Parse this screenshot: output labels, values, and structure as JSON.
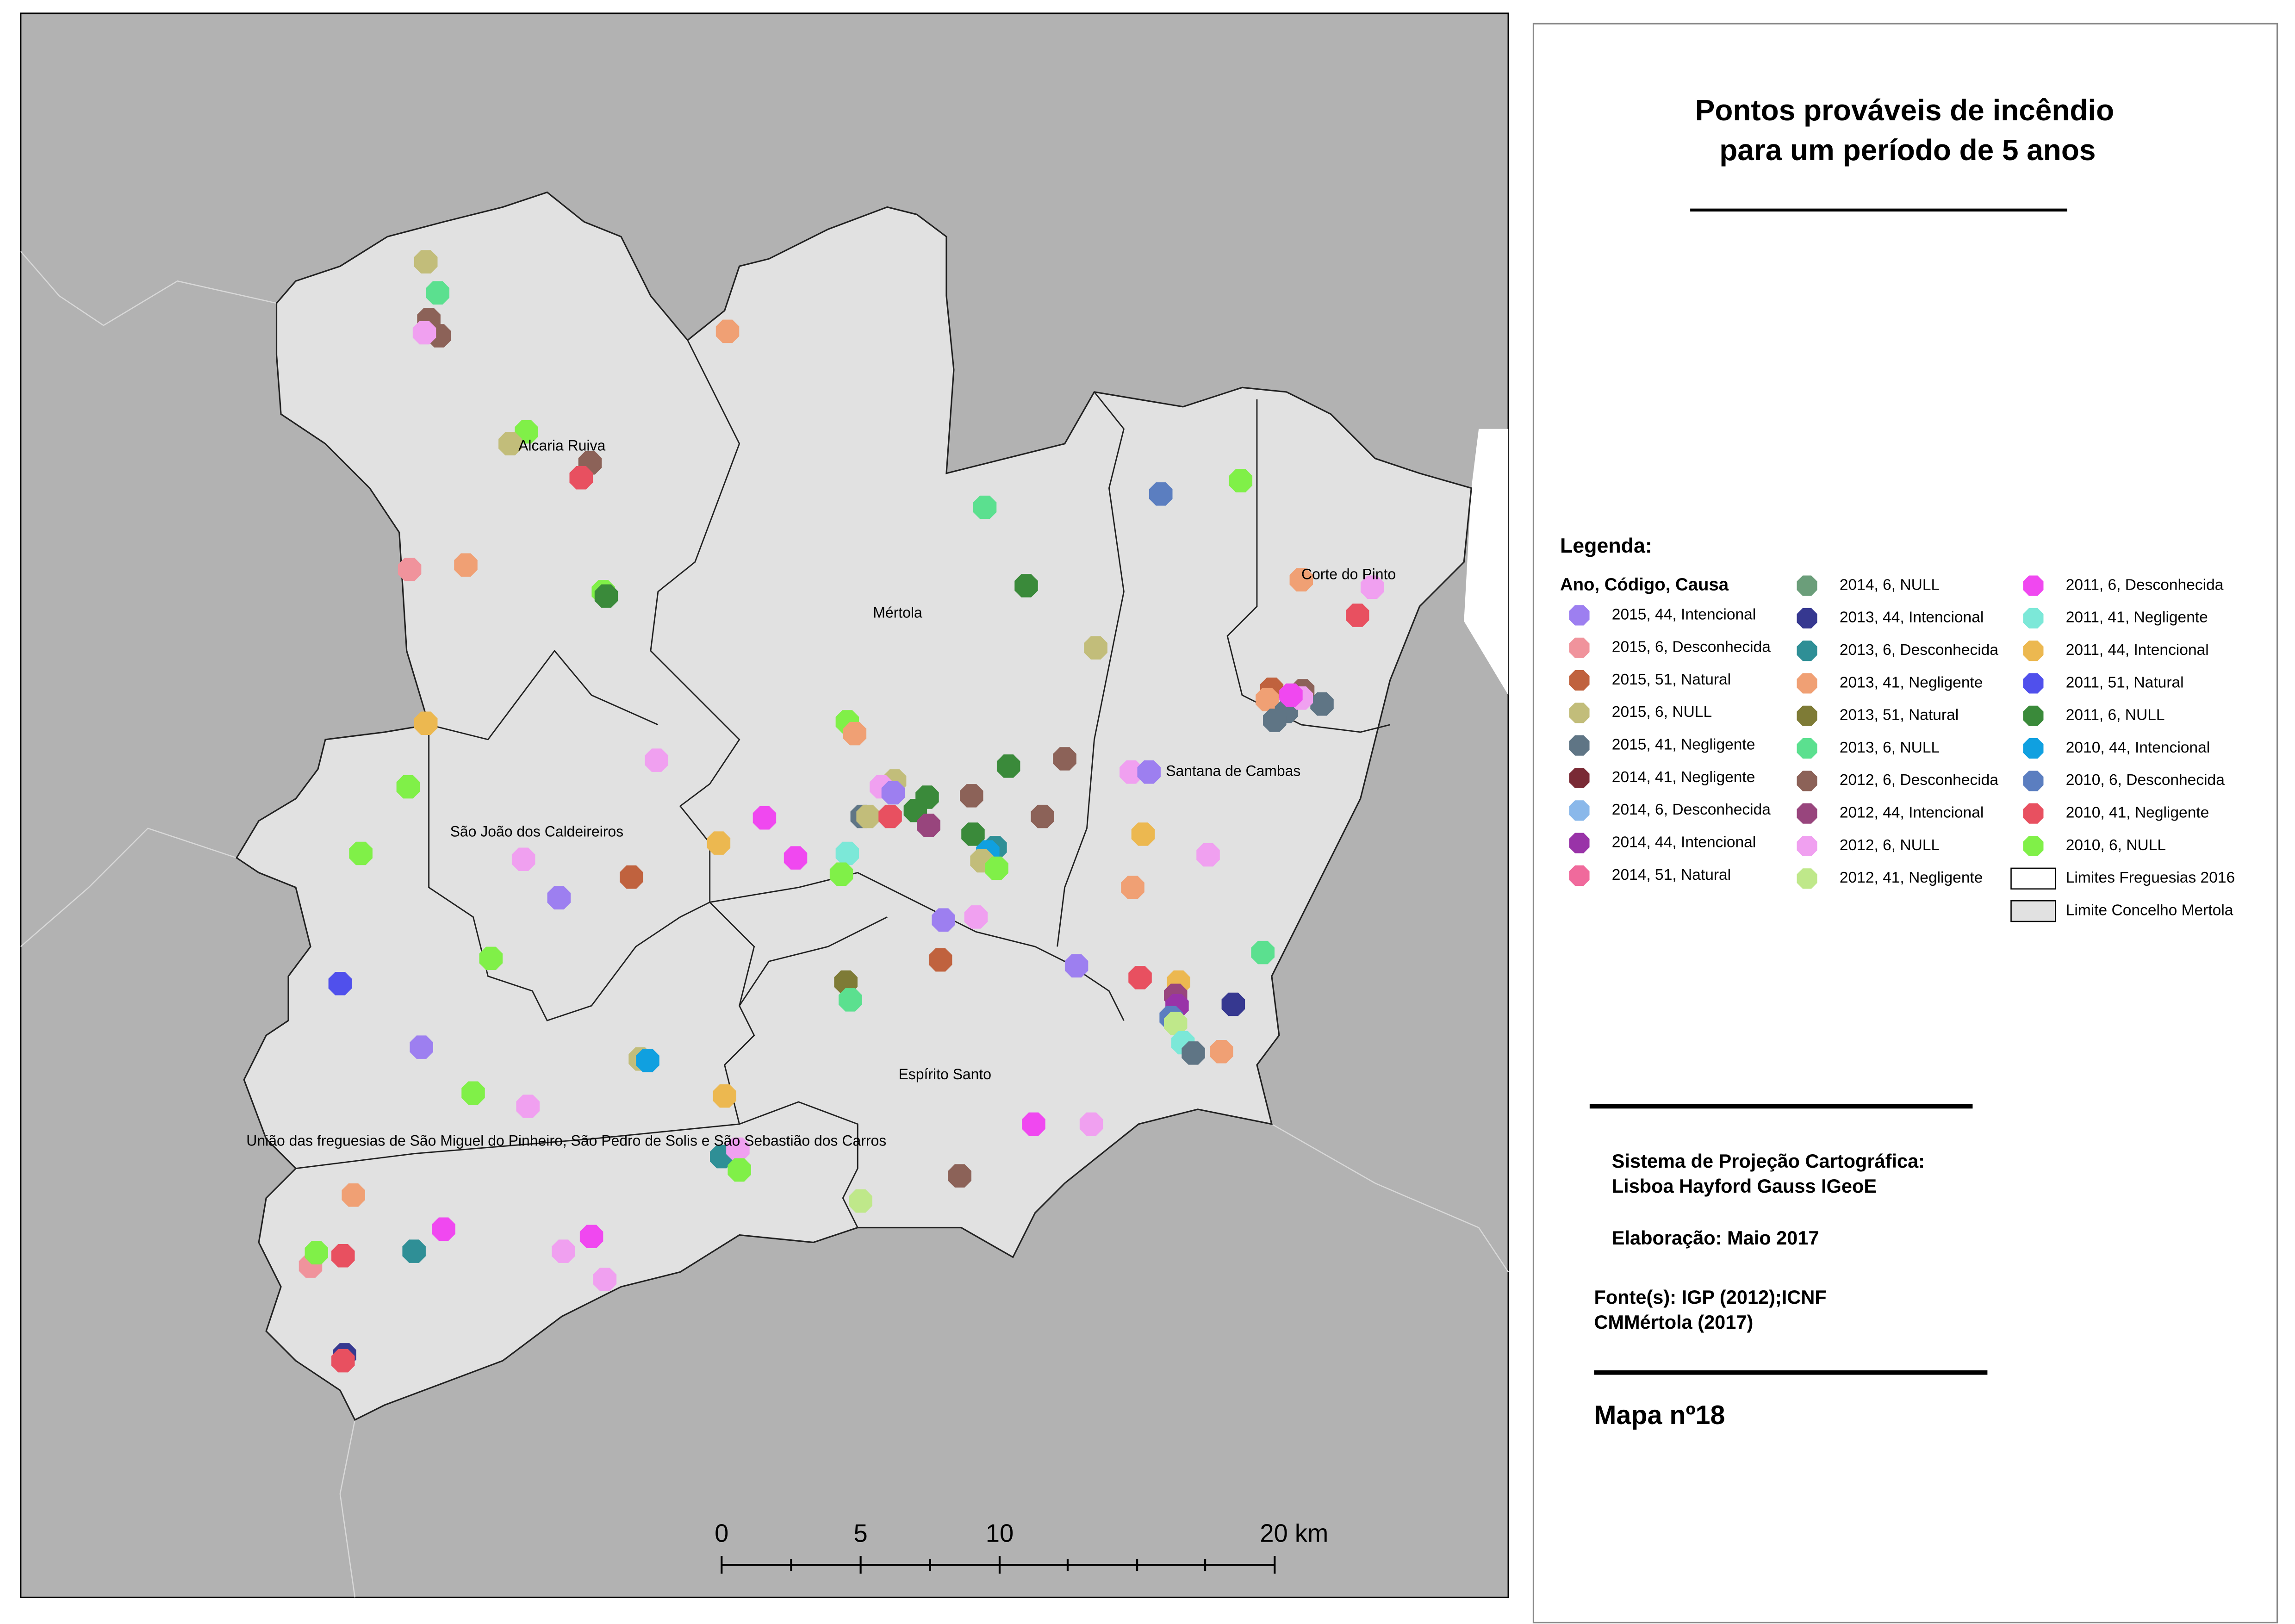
{
  "header": {
    "title_lines": [
      "Pontos prováveis de incêndio",
      "para um período de 5 anos"
    ]
  },
  "legend": {
    "title": "Legenda:",
    "subtitle": "Ano, Código, Causa",
    "entries": [
      {
        "label": "2015, 44, Intencional",
        "color": "#9d7ff0"
      },
      {
        "label": "2015, 6, Desconhecida",
        "color": "#f0939c"
      },
      {
        "label": "2015, 51, Natural",
        "color": "#c0623e"
      },
      {
        "label": "2015, 6, NULL",
        "color": "#c2bd7a"
      },
      {
        "label": "2015, 41, Negligente",
        "color": "#5f7585"
      },
      {
        "label": "2014, 41, Negligente",
        "color": "#7a2a35"
      },
      {
        "label": "2014, 6, Desconhecida",
        "color": "#8ab8ea"
      },
      {
        "label": "2014, 44, Intencional",
        "color": "#9933a8"
      },
      {
        "label": "2014, 51, Natural",
        "color": "#f06a9c"
      },
      {
        "label": "2014, 6, NULL",
        "color": "#6b9e7a"
      },
      {
        "label": "2013, 44, Intencional",
        "color": "#363890"
      },
      {
        "label": "2013, 6, Desconhecida",
        "color": "#2f8f96"
      },
      {
        "label": "2013, 41, Negligente",
        "color": "#f0a074"
      },
      {
        "label": "2013, 51, Natural",
        "color": "#7e7b36"
      },
      {
        "label": "2013, 6, NULL",
        "color": "#5be08f"
      },
      {
        "label": "2012, 6, Desconhecida",
        "color": "#8c6258"
      },
      {
        "label": "2012, 44, Intencional",
        "color": "#98457d"
      },
      {
        "label": "2012, 6, NULL",
        "color": "#f0a0f0"
      },
      {
        "label": "2012, 41, Negligente",
        "color": "#bfe88a"
      },
      {
        "label": "2011, 6, Desconhecida",
        "color": "#f048f0"
      },
      {
        "label": "2011, 41, Negligente",
        "color": "#7ce8d8"
      },
      {
        "label": "2011, 44, Intencional",
        "color": "#ecb850"
      },
      {
        "label": "2011, 51, Natural",
        "color": "#5050ec"
      },
      {
        "label": "2011, 6, NULL",
        "color": "#3a8a3a"
      },
      {
        "label": "2010, 44, Intencional",
        "color": "#10a0e0"
      },
      {
        "label": "2010, 6, Desconhecida",
        "color": "#5b7ec0"
      },
      {
        "label": "2010, 41, Negligente",
        "color": "#e85060"
      },
      {
        "label": "2010, 6, NULL",
        "color": "#80f048"
      },
      {
        "label": "Limites Freguesias 2016",
        "color": "#ffffff"
      },
      {
        "label": "Limite Concelho Mertola",
        "color": "#e1e1e1"
      }
    ]
  },
  "places": [
    "Alcaria Ruiva",
    "Mértola",
    "Corte do Pinto",
    "Santana de Cambas",
    "São João dos Caldeireiros",
    "Espírito Santo",
    "União das freguesias de São Miguel do Pinheiro, São Pedro de Solis e São Sebastião dos Carros"
  ],
  "info": {
    "projection_lines": [
      "Sistema de Projeção Cartográfica:",
      "Lisboa Hayford Gauss IGeoE"
    ],
    "date": "Elaboração: Maio 2017",
    "source_lines": [
      "Fonte(s): IGP (2012);ICNF",
      "CMMértola (2017)"
    ],
    "map_number": "Mapa nº18"
  },
  "scalebar": {
    "labels": [
      "0",
      "5",
      "10",
      "20 km"
    ]
  }
}
